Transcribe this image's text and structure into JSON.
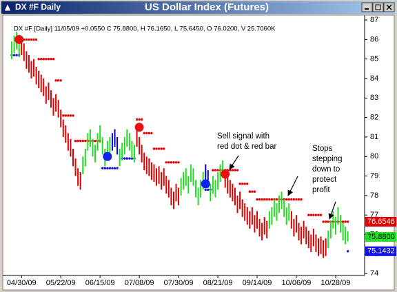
{
  "window": {
    "title": "DX #F Daily"
  },
  "chart_data": {
    "type": "range",
    "title": "US Dollar Index (Futures)",
    "info": "DX #F [Daily] 11/05/09 +0.0550 C 75.8800, H 76.1650, L 75.6450, O 76.0200, V 25.7060K",
    "categories": [
      null,
      null,
      null,
      null,
      "04/30/09",
      null,
      null,
      null,
      null,
      null,
      null,
      null,
      null,
      null,
      null,
      null,
      null,
      null,
      null,
      null,
      "05/22/09",
      null,
      null,
      null,
      null,
      null,
      null,
      null,
      null,
      null,
      null,
      null,
      null,
      null,
      null,
      null,
      "06/15/09",
      null,
      null,
      null,
      null,
      null,
      null,
      null,
      null,
      null,
      null,
      null,
      null,
      null,
      null,
      null,
      "07/08/09",
      null,
      null,
      null,
      null,
      null,
      null,
      null,
      null,
      null,
      null,
      null,
      null,
      null,
      null,
      null,
      "07/30/09",
      null,
      null,
      null,
      null,
      null,
      null,
      null,
      null,
      null,
      null,
      null,
      null,
      null,
      null,
      null,
      "08/21/09",
      null,
      null,
      null,
      null,
      null,
      null,
      null,
      null,
      null,
      null,
      null,
      null,
      null,
      null,
      null,
      "09/14/09",
      null,
      null,
      null,
      null,
      null,
      null,
      null,
      null,
      null,
      null,
      null,
      null,
      null,
      null,
      null,
      "10/06/09",
      null,
      null,
      null,
      null,
      null,
      null,
      null,
      null,
      null,
      null,
      null,
      null,
      null,
      null,
      null,
      "10/28/09",
      null,
      null,
      null,
      null,
      null
    ],
    "high": [
      85.9,
      86.2,
      86.4,
      86.0,
      86.1,
      85.8,
      85.4,
      85.2,
      84.9,
      85.0,
      84.6,
      84.4,
      84.2,
      84.0,
      83.6,
      83.8,
      83.4,
      83.0,
      83.2,
      82.9,
      82.4,
      81.9,
      81.6,
      81.2,
      80.9,
      80.4,
      79.9,
      79.4,
      79.2,
      80.0,
      80.4,
      81.2,
      81.4,
      80.9,
      80.6,
      81.2,
      81.6,
      81.0,
      80.4,
      80.8,
      81.0,
      81.2,
      81.4,
      81.0,
      80.4,
      80.7,
      81.0,
      81.4,
      81.2,
      80.8,
      80.6,
      81.4,
      81.0,
      80.6,
      80.2,
      80.0,
      79.9,
      79.7,
      79.6,
      79.4,
      79.5,
      79.2,
      79.4,
      79.0,
      78.8,
      78.4,
      78.2,
      78.6,
      78.4,
      78.9,
      79.2,
      79.4,
      79.0,
      79.6,
      79.4,
      78.8,
      78.4,
      78.8,
      79.2,
      79.6,
      79.3,
      78.6,
      79.0,
      78.8,
      79.2,
      79.6,
      79.8,
      79.3,
      79.0,
      78.8,
      78.6,
      78.4,
      78.0,
      78.2,
      77.8,
      77.6,
      77.4,
      77.2,
      77.4,
      77.0,
      77.2,
      76.8,
      76.6,
      76.9,
      76.7,
      77.2,
      77.4,
      77.8,
      77.6,
      78.0,
      78.2,
      77.8,
      77.4,
      77.6,
      77.2,
      76.8,
      77.0,
      76.6,
      76.4,
      76.7,
      76.4,
      76.2,
      76.0,
      76.3,
      76.0,
      75.8,
      75.9,
      75.7,
      75.8,
      76.2,
      76.7,
      77.2,
      76.9,
      77.4,
      77.0,
      76.6,
      76.4,
      76.165
    ],
    "low": [
      85.0,
      85.3,
      85.5,
      85.1,
      85.2,
      84.9,
      84.5,
      84.3,
      84.0,
      84.1,
      83.7,
      83.5,
      83.3,
      83.1,
      82.7,
      82.9,
      82.5,
      82.1,
      82.3,
      82.0,
      81.5,
      81.0,
      80.7,
      80.3,
      80.0,
      79.5,
      79.0,
      78.5,
      78.3,
      79.1,
      79.5,
      80.3,
      80.5,
      80.0,
      79.7,
      80.3,
      80.7,
      80.1,
      79.5,
      79.9,
      80.1,
      80.3,
      80.5,
      80.1,
      79.5,
      79.8,
      80.1,
      80.5,
      80.3,
      79.9,
      79.7,
      80.5,
      80.1,
      79.7,
      79.3,
      79.1,
      79.0,
      78.8,
      78.7,
      78.5,
      78.6,
      78.3,
      78.5,
      78.1,
      77.9,
      77.5,
      77.3,
      77.7,
      77.5,
      78.0,
      78.3,
      78.5,
      78.1,
      78.7,
      78.5,
      77.9,
      77.5,
      77.9,
      78.3,
      78.7,
      78.4,
      77.7,
      78.1,
      77.9,
      78.3,
      78.7,
      78.9,
      78.4,
      78.1,
      77.9,
      77.7,
      77.5,
      77.1,
      77.3,
      76.9,
      76.7,
      76.5,
      76.3,
      76.5,
      76.1,
      76.3,
      75.9,
      75.7,
      76.0,
      75.8,
      76.3,
      76.5,
      76.9,
      76.7,
      77.1,
      77.3,
      76.9,
      76.5,
      76.7,
      76.3,
      75.9,
      76.1,
      75.7,
      75.5,
      75.8,
      75.5,
      75.3,
      75.1,
      75.4,
      75.1,
      74.9,
      75.0,
      74.8,
      74.9,
      75.3,
      75.8,
      76.3,
      76.0,
      76.5,
      76.1,
      75.7,
      75.5,
      75.645
    ],
    "bar_colors": [
      "#2d2",
      "#2d2",
      "#2d2",
      "#2d2",
      "#d00",
      "#d00",
      "#d00",
      "#d00",
      "#d00",
      "#d00",
      "#d00",
      "#d00",
      "#d00",
      "#d00",
      "#d00",
      "#d00",
      "#d00",
      "#d00",
      "#d00",
      "#d00",
      "#d00",
      "#d00",
      "#d00",
      "#d00",
      "#d00",
      "#d00",
      "#d00",
      "#d00",
      "#d00",
      "#2d2",
      "#2d2",
      "#2d2",
      "#2d2",
      "#2d2",
      "#2d2",
      "#2d2",
      "#2d2",
      "#2d2",
      "#2d2",
      "#2d2",
      "#2d2",
      "#00d",
      "#00d",
      "#00d",
      "#2d2",
      "#2d2",
      "#2d2",
      "#2d2",
      "#2d2",
      "#2d2",
      "#2d2",
      "#d00",
      "#d00",
      "#d00",
      "#d00",
      "#d00",
      "#d00",
      "#d00",
      "#d00",
      "#d00",
      "#d00",
      "#d00",
      "#d00",
      "#d00",
      "#d00",
      "#d00",
      "#d00",
      "#d00",
      "#d00",
      "#2d2",
      "#2d2",
      "#2d2",
      "#2d2",
      "#2d2",
      "#2d2",
      "#2d2",
      "#2d2",
      "#2d2",
      "#2d2",
      "#00d",
      "#00d",
      "#2d2",
      "#2d2",
      "#2d2",
      "#2d2",
      "#2d2",
      "#2d2",
      "#d00",
      "#d00",
      "#d00",
      "#d00",
      "#d00",
      "#d00",
      "#d00",
      "#d00",
      "#d00",
      "#d00",
      "#d00",
      "#d00",
      "#d00",
      "#d00",
      "#d00",
      "#d00",
      "#d00",
      "#d00",
      "#2d2",
      "#2d2",
      "#2d2",
      "#2d2",
      "#2d2",
      "#2d2",
      "#2d2",
      "#2d2",
      "#2d2",
      "#d00",
      "#d00",
      "#d00",
      "#d00",
      "#d00",
      "#d00",
      "#d00",
      "#d00",
      "#d00",
      "#d00",
      "#d00",
      "#d00",
      "#d00",
      "#d00",
      "#d00",
      "#2d2",
      "#2d2",
      "#2d2",
      "#2d2",
      "#2d2",
      "#2d2",
      "#2d2",
      "#2d2",
      "#2d2"
    ],
    "stop_above": [
      null,
      null,
      null,
      null,
      86,
      86,
      86,
      86,
      86,
      86,
      86,
      85,
      85,
      85,
      85,
      85,
      85,
      85,
      83.9,
      83.9,
      83.9,
      82.1,
      82.1,
      82.1,
      82.1,
      82.1,
      80.8,
      80.8,
      80.8,
      80.8,
      80.8,
      80.8,
      80.8,
      80.8,
      80.8,
      80.8,
      80.8,
      null,
      null,
      null,
      null,
      null,
      null,
      null,
      null,
      null,
      null,
      null,
      null,
      null,
      null,
      81.9,
      81.9,
      81.9,
      81.2,
      81.2,
      81.2,
      81.2,
      80.4,
      80.4,
      80.4,
      80.4,
      80.4,
      79.7,
      79.7,
      79.7,
      79.7,
      79.7,
      79.7,
      null,
      null,
      null,
      null,
      null,
      null,
      null,
      null,
      null,
      null,
      null,
      null,
      null,
      79.3,
      79.3,
      79.3,
      79.3,
      79.3,
      79.3,
      79.3,
      79.3,
      79.3,
      79.3,
      79.3,
      78.6,
      78.6,
      78.6,
      78.6,
      78.2,
      78.2,
      78.2,
      77.8,
      77.8,
      77.8,
      77.8,
      77.8,
      77.8,
      77.8,
      77.8,
      77.8,
      77.8,
      77.8,
      77.8,
      77.8,
      77.8,
      77.8,
      77.8,
      77.8,
      77.8,
      77.8,
      null,
      null,
      77,
      77,
      77,
      77,
      77,
      77,
      76.6546,
      76.6546,
      76.6546,
      76.6546,
      76.6546,
      76.6546,
      76.6546,
      76.6546,
      76.6546,
      76.6546,
      76.6546
    ],
    "stop_below": [
      85.2,
      85.2,
      85.2,
      85.2,
      null,
      null,
      null,
      null,
      null,
      null,
      null,
      null,
      null,
      null,
      null,
      null,
      null,
      null,
      null,
      null,
      null,
      null,
      null,
      null,
      null,
      null,
      null,
      null,
      null,
      null,
      null,
      null,
      null,
      null,
      null,
      null,
      null,
      79.4,
      79.4,
      79.4,
      79.4,
      79.4,
      79.4,
      79.4,
      null,
      79.9,
      79.9,
      79.9,
      79.9,
      79.9,
      79.9,
      null,
      null,
      null,
      null,
      null,
      null,
      null,
      null,
      null,
      null,
      null,
      null,
      null,
      null,
      null,
      null,
      null,
      null,
      null,
      null,
      null,
      null,
      null,
      null,
      null,
      null,
      null,
      null,
      78.3,
      78.3,
      78.3,
      null,
      null,
      null,
      null,
      null,
      null,
      null,
      null,
      null,
      null,
      null,
      null,
      null,
      null,
      null,
      null,
      null,
      null,
      null,
      null,
      null,
      null,
      null,
      null,
      null,
      null,
      null,
      null,
      null,
      null,
      null,
      null,
      null,
      null,
      null,
      null,
      null,
      null,
      null,
      null,
      null,
      null,
      null,
      null,
      null,
      null,
      null,
      null,
      null,
      null,
      null,
      null,
      null,
      null,
      null,
      75.1432
    ],
    "sell_signal": [
      null,
      null,
      null,
      86.0,
      null,
      null,
      null,
      null,
      null,
      null,
      null,
      null,
      null,
      null,
      null,
      null,
      null,
      null,
      null,
      null,
      null,
      null,
      null,
      null,
      null,
      null,
      null,
      null,
      null,
      null,
      null,
      null,
      null,
      null,
      null,
      null,
      null,
      null,
      null,
      null,
      null,
      null,
      null,
      null,
      null,
      null,
      null,
      null,
      null,
      null,
      null,
      null,
      81.5,
      null,
      null,
      null,
      null,
      null,
      null,
      null,
      null,
      null,
      null,
      null,
      null,
      null,
      null,
      null,
      null,
      null,
      null,
      null,
      null,
      null,
      null,
      null,
      null,
      null,
      null,
      null,
      null,
      null,
      null,
      null,
      null,
      null,
      null,
      79.1,
      null,
      null,
      null,
      null,
      null,
      null,
      null,
      null,
      null,
      null,
      null,
      null,
      null,
      null,
      null,
      null,
      null,
      null,
      null,
      null,
      null,
      null,
      null,
      null,
      null,
      null,
      null,
      null,
      null,
      null,
      null,
      null,
      null,
      null,
      null,
      null,
      null,
      null,
      null,
      null,
      null,
      null,
      null,
      null,
      null,
      null,
      null,
      null,
      null,
      null
    ],
    "buy_signal": [
      null,
      null,
      null,
      null,
      null,
      null,
      null,
      null,
      null,
      null,
      null,
      null,
      null,
      null,
      null,
      null,
      null,
      null,
      null,
      null,
      null,
      null,
      null,
      null,
      null,
      null,
      null,
      null,
      null,
      null,
      null,
      null,
      null,
      null,
      null,
      null,
      null,
      null,
      null,
      80.0,
      null,
      null,
      null,
      null,
      null,
      null,
      null,
      null,
      null,
      null,
      null,
      null,
      null,
      null,
      null,
      null,
      null,
      null,
      null,
      null,
      null,
      null,
      null,
      null,
      null,
      null,
      null,
      null,
      null,
      null,
      null,
      null,
      null,
      null,
      null,
      null,
      null,
      null,
      null,
      78.6,
      null,
      null,
      null,
      null,
      null,
      null,
      null,
      null,
      null,
      null,
      null,
      null,
      null,
      null,
      null,
      null,
      null,
      null,
      null,
      null,
      null,
      null,
      null,
      null,
      null,
      null,
      null,
      null,
      null,
      null,
      null,
      null,
      null,
      null,
      null,
      null,
      null,
      null,
      null,
      null,
      null,
      null,
      null,
      null,
      null,
      null,
      null,
      null,
      null,
      null,
      null,
      null,
      null,
      null,
      null,
      null,
      null,
      null
    ],
    "colors": {
      "stop_above": "#e00000",
      "stop_below": "#1010e0",
      "sell_signal": "#e81010",
      "buy_signal": "#1020f0"
    },
    "ylim": [
      73.9,
      87.25
    ],
    "yticks": [
      74,
      75,
      76,
      77,
      78,
      79,
      80,
      81,
      82,
      83,
      84,
      85,
      86,
      87
    ],
    "grid": false,
    "price_labels": [
      {
        "value": 76.6546,
        "color": "#e00000"
      },
      {
        "value": 75.88,
        "label": "75.8800",
        "color": "#22e022"
      },
      {
        "value": 75.1432,
        "color": "#1010e0"
      }
    ],
    "annotations": [
      {
        "lines": [
          "Sell signal with",
          "red dot & red bar"
        ]
      },
      {
        "lines": [
          "Stops",
          "stepping",
          "down to",
          "protect",
          "profit"
        ]
      }
    ]
  }
}
